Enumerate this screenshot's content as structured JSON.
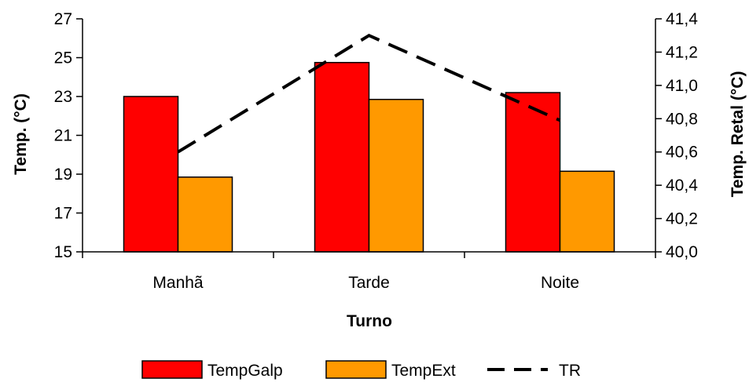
{
  "chart_data": {
    "type": "bar",
    "categories": [
      "Manhã",
      "Tarde",
      "Noite"
    ],
    "xlabel": "Turno",
    "ylabel": "Temp. (°C)",
    "y2label": "Temp. Retal (°C)",
    "ylim": [
      15,
      27
    ],
    "y_ticks": [
      "15",
      "17",
      "19",
      "21",
      "23",
      "25",
      "27"
    ],
    "y2lim": [
      40.0,
      41.4
    ],
    "y2_ticks": [
      "40,0",
      "40,2",
      "40,4",
      "40,6",
      "40,8",
      "41,0",
      "41,2",
      "41,4"
    ],
    "series": [
      {
        "name": "TempGalp",
        "kind": "bar",
        "axis": "left",
        "color": "#ff0000",
        "values": [
          23.0,
          24.75,
          23.2
        ]
      },
      {
        "name": "TempExt",
        "kind": "bar",
        "axis": "left",
        "color": "#ff9900",
        "values": [
          18.85,
          22.85,
          19.15
        ]
      },
      {
        "name": "TR",
        "kind": "line",
        "style": "dashed",
        "axis": "right",
        "color": "#000000",
        "values": [
          40.6,
          41.3,
          40.79
        ]
      }
    ],
    "legend": {
      "position": "bottom"
    },
    "grid": false
  }
}
